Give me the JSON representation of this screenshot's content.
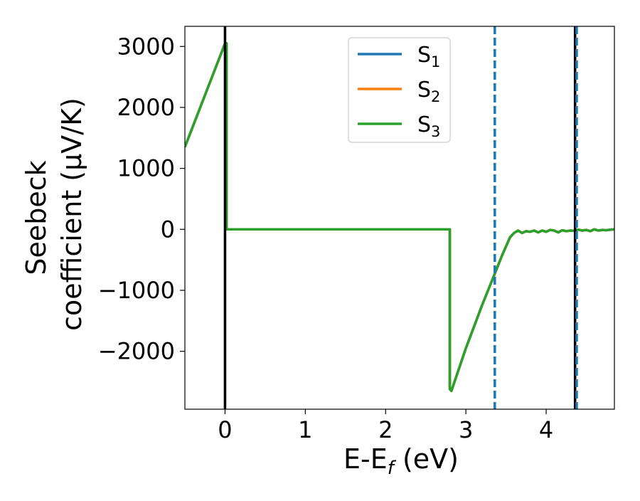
{
  "chart_data": {
    "type": "line",
    "title": "",
    "xlabel": "E-E$_f$ (eV)",
    "xlabel_parts": {
      "main": "E-E",
      "sub": "f",
      "tail": " (eV)"
    },
    "ylabel": "Seebeck coefficient (μV/K)",
    "ylabel_lines": [
      "Seebeck",
      "coefficient  (μV/K)"
    ],
    "xlim": [
      -0.5,
      4.85
    ],
    "ylim": [
      -2950,
      3330
    ],
    "xticks": [
      0,
      1,
      2,
      3,
      4
    ],
    "xtick_labels": [
      "0",
      "1",
      "2",
      "3",
      "4"
    ],
    "yticks": [
      -2000,
      -1000,
      0,
      1000,
      2000,
      3000
    ],
    "ytick_labels": [
      "−2000",
      "−1000",
      "0",
      "1000",
      "2000",
      "3000"
    ],
    "grid": false,
    "legend_position": "upper-center",
    "series": [
      {
        "name": "S1",
        "label_main": "S",
        "label_sub": "1",
        "color": "#1f77b4",
        "x": [
          -0.5,
          0.0,
          0.02,
          0.02,
          2.8,
          2.8,
          2.82,
          3.0,
          3.2,
          3.35,
          3.45,
          3.55,
          3.6,
          3.65,
          3.7,
          3.75,
          3.8,
          3.85,
          3.9,
          3.95,
          4.0,
          4.05,
          4.1,
          4.15,
          4.2,
          4.25,
          4.3,
          4.35,
          4.4,
          4.45,
          4.5,
          4.55,
          4.6,
          4.65,
          4.7,
          4.75,
          4.8,
          4.85
        ],
        "y": [
          1350,
          3050,
          3050,
          0,
          0,
          -2620,
          -2650,
          -1950,
          -1250,
          -760,
          -430,
          -130,
          -60,
          -20,
          -60,
          -30,
          -40,
          -20,
          -50,
          -20,
          -40,
          -10,
          -20,
          -50,
          -15,
          -30,
          -20,
          -25,
          -5,
          -20,
          -10,
          -30,
          0,
          -20,
          -10,
          -15,
          -5,
          0
        ]
      },
      {
        "name": "S2",
        "label_main": "S",
        "label_sub": "2",
        "color": "#ff7f0e",
        "x": [
          -0.5,
          0.0,
          0.02,
          0.02,
          2.8,
          2.8,
          2.82,
          3.0,
          3.2,
          3.35,
          3.45,
          3.55,
          3.6,
          3.65,
          3.7,
          3.75,
          3.8,
          3.85,
          3.9,
          3.95,
          4.0,
          4.05,
          4.1,
          4.15,
          4.2,
          4.25,
          4.3,
          4.35,
          4.4,
          4.45,
          4.5,
          4.55,
          4.6,
          4.65,
          4.7,
          4.75,
          4.8,
          4.85
        ],
        "y": [
          1350,
          3050,
          3050,
          0,
          0,
          -2620,
          -2650,
          -1950,
          -1250,
          -760,
          -430,
          -130,
          -60,
          -20,
          -60,
          -30,
          -40,
          -20,
          -50,
          -20,
          -40,
          -10,
          -20,
          -50,
          -15,
          -30,
          -20,
          -25,
          -5,
          -20,
          -10,
          -30,
          0,
          -20,
          -10,
          -15,
          -5,
          0
        ]
      },
      {
        "name": "S3",
        "label_main": "S",
        "label_sub": "3",
        "color": "#2ca02c",
        "x": [
          -0.5,
          0.0,
          0.02,
          0.02,
          2.8,
          2.8,
          2.82,
          3.0,
          3.2,
          3.35,
          3.45,
          3.55,
          3.6,
          3.65,
          3.7,
          3.75,
          3.8,
          3.85,
          3.9,
          3.95,
          4.0,
          4.05,
          4.1,
          4.15,
          4.2,
          4.25,
          4.3,
          4.35,
          4.4,
          4.45,
          4.5,
          4.55,
          4.6,
          4.65,
          4.7,
          4.75,
          4.8,
          4.85
        ],
        "y": [
          1350,
          3050,
          3050,
          0,
          0,
          -2620,
          -2650,
          -1950,
          -1250,
          -760,
          -430,
          -130,
          -60,
          -20,
          -60,
          -30,
          -40,
          -20,
          -50,
          -20,
          -40,
          -10,
          -20,
          -50,
          -15,
          -30,
          -20,
          -25,
          -5,
          -20,
          -10,
          -30,
          0,
          -20,
          -10,
          -15,
          -5,
          0
        ]
      }
    ],
    "vlines": [
      {
        "x": 0.0,
        "color": "#000000",
        "style": "solid"
      },
      {
        "x": 4.36,
        "color": "#000000",
        "style": "solid"
      },
      {
        "x": 3.36,
        "color": "#1f77b4",
        "style": "dashed"
      },
      {
        "x": 4.38,
        "color": "#1f77b4",
        "style": "dashed"
      }
    ]
  }
}
